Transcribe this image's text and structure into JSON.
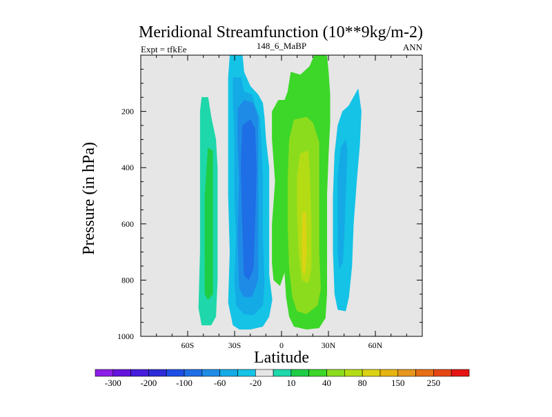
{
  "chart_data": {
    "type": "contour",
    "title": "Meridional Streamfunction (10**9kg/m-2)",
    "left_subtitle": "Expt = tfkEe",
    "center_subtitle": "148_6_MaBP",
    "right_subtitle": "ANN",
    "xlabel": "Latitude",
    "ylabel": "Pressure (in hPa)",
    "xlim": [
      -90,
      90
    ],
    "ylim": [
      0,
      1000
    ],
    "y_inverted": true,
    "x_ticks": [
      {
        "value": -60,
        "label": "60S"
      },
      {
        "value": -30,
        "label": "30S"
      },
      {
        "value": 0,
        "label": "0"
      },
      {
        "value": 30,
        "label": "30N"
      },
      {
        "value": 60,
        "label": "60N"
      }
    ],
    "y_ticks": [
      {
        "value": 200,
        "label": "200"
      },
      {
        "value": 400,
        "label": "400"
      },
      {
        "value": 600,
        "label": "600"
      },
      {
        "value": 800,
        "label": "800"
      },
      {
        "value": 1000,
        "label": "1000"
      }
    ],
    "background_color": "#e6e6e6",
    "colorbar": {
      "colors": [
        "#8c1ee6",
        "#6414dc",
        "#461edc",
        "#2d2dd7",
        "#1e50e6",
        "#1e6ee6",
        "#1e8ce6",
        "#14aae6",
        "#14c3e6",
        "#e6e6e6",
        "#1ed7aa",
        "#1ecd46",
        "#3cd728",
        "#8cdc1e",
        "#b4dc14",
        "#dcd214",
        "#e6b40f",
        "#e6961e",
        "#e66e14",
        "#e64614",
        "#e61414"
      ],
      "labels": [
        {
          "after_box": 1,
          "text": "-300"
        },
        {
          "after_box": 3,
          "text": "-200"
        },
        {
          "after_box": 5,
          "text": "-100"
        },
        {
          "after_box": 7,
          "text": "-60"
        },
        {
          "after_box": 9,
          "text": "-20"
        },
        {
          "after_box": 11,
          "text": "10"
        },
        {
          "after_box": 13,
          "text": "40"
        },
        {
          "after_box": 15,
          "text": "80"
        },
        {
          "after_box": 17,
          "text": "150"
        },
        {
          "after_box": 19,
          "text": "250"
        }
      ]
    },
    "regions": [
      {
        "name": "south-outer-positive-cell",
        "fill": "#1ed7aa",
        "polygon": [
          [
            -51,
            150
          ],
          [
            -47,
            150
          ],
          [
            -45,
            220
          ],
          [
            -42,
            300
          ],
          [
            -41,
            400
          ],
          [
            -41,
            600
          ],
          [
            -41,
            800
          ],
          [
            -42,
            930
          ],
          [
            -45,
            960
          ],
          [
            -51,
            960
          ],
          [
            -53,
            900
          ],
          [
            -52,
            700
          ],
          [
            -52,
            400
          ],
          [
            -52,
            200
          ]
        ]
      },
      {
        "name": "south-outer-positive-core",
        "fill": "#1ecd46",
        "polygon": [
          [
            -47,
            330
          ],
          [
            -44,
            340
          ],
          [
            -44,
            600
          ],
          [
            -44,
            850
          ],
          [
            -47,
            870
          ],
          [
            -49,
            850
          ],
          [
            -49,
            500
          ]
        ]
      },
      {
        "name": "south-negative-cell",
        "fill": "#14c3e6",
        "polygon": [
          [
            -33,
            0
          ],
          [
            -25,
            0
          ],
          [
            -24,
            60
          ],
          [
            -20,
            110
          ],
          [
            -15,
            140
          ],
          [
            -12,
            170
          ],
          [
            -11,
            220
          ],
          [
            -10,
            300
          ],
          [
            -8,
            400
          ],
          [
            -8,
            550
          ],
          [
            -8,
            700
          ],
          [
            -8,
            780
          ],
          [
            -6,
            870
          ],
          [
            -8,
            930
          ],
          [
            -12,
            965
          ],
          [
            -20,
            975
          ],
          [
            -27,
            975
          ],
          [
            -31,
            960
          ],
          [
            -34,
            880
          ],
          [
            -33,
            700
          ],
          [
            -34,
            500
          ],
          [
            -34,
            300
          ],
          [
            -34,
            200
          ],
          [
            -34,
            80
          ]
        ]
      },
      {
        "name": "south-negative-mid",
        "fill": "#14aae6",
        "polygon": [
          [
            -31,
            80
          ],
          [
            -26,
            80
          ],
          [
            -24,
            130
          ],
          [
            -19,
            140
          ],
          [
            -17,
            180
          ],
          [
            -14,
            220
          ],
          [
            -13,
            300
          ],
          [
            -12,
            450
          ],
          [
            -12,
            650
          ],
          [
            -11,
            810
          ],
          [
            -12,
            890
          ],
          [
            -18,
            925
          ],
          [
            -24,
            920
          ],
          [
            -29,
            890
          ],
          [
            -30,
            800
          ],
          [
            -29,
            650
          ],
          [
            -30,
            500
          ],
          [
            -30,
            300
          ],
          [
            -31,
            150
          ]
        ]
      },
      {
        "name": "south-negative-core",
        "fill": "#1e8ce6",
        "polygon": [
          [
            -28,
            190
          ],
          [
            -24,
            160
          ],
          [
            -18,
            170
          ],
          [
            -15,
            220
          ],
          [
            -15,
            400
          ],
          [
            -15,
            600
          ],
          [
            -15,
            800
          ],
          [
            -19,
            860
          ],
          [
            -24,
            860
          ],
          [
            -27,
            830
          ],
          [
            -28,
            650
          ],
          [
            -27,
            450
          ],
          [
            -28,
            300
          ]
        ]
      },
      {
        "name": "south-negative-deep-core",
        "fill": "#1e6ee6",
        "polygon": [
          [
            -25,
            250
          ],
          [
            -20,
            230
          ],
          [
            -17,
            260
          ],
          [
            -16,
            400
          ],
          [
            -17,
            600
          ],
          [
            -18,
            760
          ],
          [
            -21,
            800
          ],
          [
            -24,
            780
          ],
          [
            -25,
            600
          ],
          [
            -26,
            400
          ]
        ]
      },
      {
        "name": "north-positive-cell",
        "fill": "#3cd728",
        "polygon": [
          [
            6,
            60
          ],
          [
            12,
            70
          ],
          [
            18,
            40
          ],
          [
            21,
            0
          ],
          [
            29,
            0
          ],
          [
            30,
            60
          ],
          [
            31,
            140
          ],
          [
            31,
            240
          ],
          [
            30,
            350
          ],
          [
            29,
            500
          ],
          [
            29,
            700
          ],
          [
            29,
            850
          ],
          [
            28,
            935
          ],
          [
            24,
            970
          ],
          [
            16,
            975
          ],
          [
            8,
            965
          ],
          [
            5,
            930
          ],
          [
            3,
            860
          ],
          [
            2,
            770
          ],
          [
            -1,
            820
          ],
          [
            -5,
            800
          ],
          [
            -6,
            740
          ],
          [
            -6,
            600
          ],
          [
            -4,
            450
          ],
          [
            -6,
            300
          ],
          [
            -6,
            200
          ],
          [
            -2,
            160
          ],
          [
            2,
            160
          ],
          [
            4,
            130
          ]
        ]
      },
      {
        "name": "north-positive-mid",
        "fill": "#8cdc1e",
        "polygon": [
          [
            8,
            230
          ],
          [
            16,
            220
          ],
          [
            20,
            240
          ],
          [
            24,
            310
          ],
          [
            24,
            500
          ],
          [
            24,
            700
          ],
          [
            25,
            830
          ],
          [
            23,
            890
          ],
          [
            16,
            920
          ],
          [
            10,
            910
          ],
          [
            7,
            860
          ],
          [
            5,
            760
          ],
          [
            4,
            600
          ],
          [
            4,
            450
          ],
          [
            5,
            300
          ]
        ]
      },
      {
        "name": "north-positive-inner",
        "fill": "#b4dc14",
        "polygon": [
          [
            12,
            350
          ],
          [
            17,
            340
          ],
          [
            18,
            420
          ],
          [
            19,
            600
          ],
          [
            19,
            760
          ],
          [
            17,
            810
          ],
          [
            13,
            800
          ],
          [
            11,
            700
          ],
          [
            10,
            560
          ],
          [
            10,
            430
          ]
        ]
      },
      {
        "name": "north-positive-core",
        "fill": "#dcd214",
        "polygon": [
          [
            13.5,
            560
          ],
          [
            15.5,
            560
          ],
          [
            16,
            700
          ],
          [
            15,
            780
          ],
          [
            13.5,
            770
          ],
          [
            13,
            680
          ]
        ]
      },
      {
        "name": "north-negative-cell",
        "fill": "#14c3e6",
        "polygon": [
          [
            39,
            200
          ],
          [
            43,
            180
          ],
          [
            47,
            140
          ],
          [
            49,
            120
          ],
          [
            51,
            200
          ],
          [
            50,
            320
          ],
          [
            48,
            450
          ],
          [
            46,
            600
          ],
          [
            45,
            750
          ],
          [
            43,
            860
          ],
          [
            41,
            910
          ],
          [
            36,
            905
          ],
          [
            34,
            850
          ],
          [
            33,
            700
          ],
          [
            33,
            500
          ],
          [
            34,
            350
          ],
          [
            36,
            250
          ]
        ]
      },
      {
        "name": "north-negative-core",
        "fill": "#14aae6",
        "polygon": [
          [
            38,
            330
          ],
          [
            41,
            300
          ],
          [
            42,
            340
          ],
          [
            41,
            500
          ],
          [
            40,
            650
          ],
          [
            39,
            740
          ],
          [
            37,
            760
          ],
          [
            36,
            700
          ],
          [
            36,
            550
          ],
          [
            36,
            430
          ]
        ]
      }
    ]
  }
}
